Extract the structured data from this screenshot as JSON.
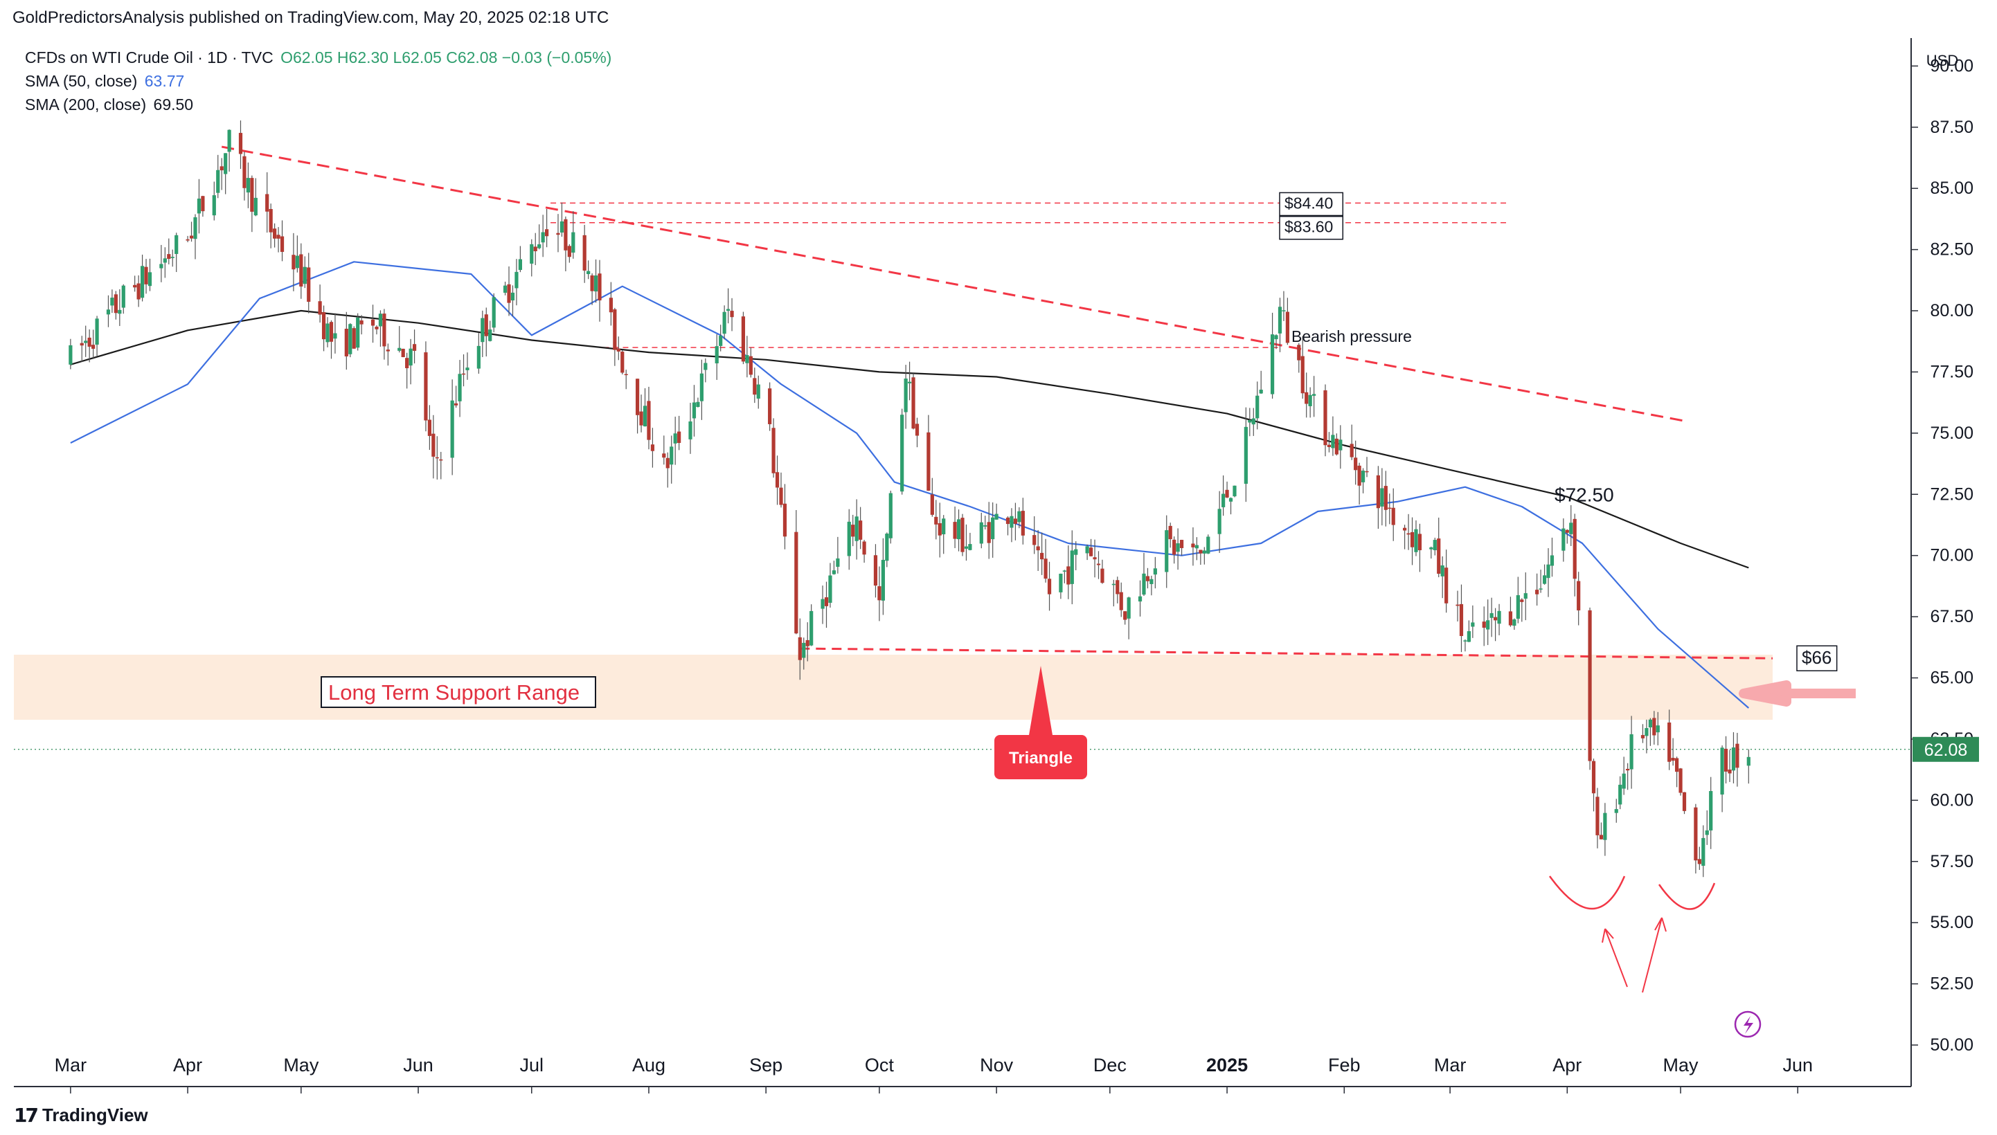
{
  "header": {
    "publish_line": "GoldPredictorsAnalysis published on TradingView.com, May 20, 2025 02:18 UTC"
  },
  "legend": {
    "symbol": "CFDs on WTI Crude Oil · 1D · TVC",
    "ohlc": "O62.05  H62.30  L62.05  C62.08  −0.03 (−0.05%)",
    "sma50_label": "SMA (50, close)",
    "sma50_value": "63.77",
    "sma200_label": "SMA (200, close)",
    "sma200_value": "69.50"
  },
  "footer": {
    "brand": "TradingView"
  },
  "colors": {
    "up": "#2e9e6e",
    "down": "#b33a32",
    "sma50": "#3d6fe0",
    "sma200": "#1a1a1a",
    "red": "#f23645",
    "support_band": "#fde8d6",
    "price_badge": "#2e8b57"
  },
  "chart_data": {
    "type": "candlestick",
    "currency": "USD",
    "ylim": [
      50,
      91
    ],
    "yticks": [
      "90.00",
      "87.50",
      "85.00",
      "82.50",
      "80.00",
      "77.50",
      "75.00",
      "72.50",
      "70.00",
      "67.50",
      "65.00",
      "62.50",
      "60.00",
      "57.50",
      "55.00",
      "52.50",
      "50.00"
    ],
    "xticks": [
      "Mar",
      "Apr",
      "May",
      "Jun",
      "Jul",
      "Aug",
      "Sep",
      "Oct",
      "Nov",
      "Dec",
      "2025",
      "Feb",
      "Mar",
      "Apr",
      "May",
      "Jun"
    ],
    "last_price": "62.08",
    "price_path": [
      [
        "2024-03-01",
        78.0
      ],
      [
        "2024-03-15",
        80.5
      ],
      [
        "2024-04-01",
        83.0
      ],
      [
        "2024-04-12",
        86.8
      ],
      [
        "2024-04-20",
        84.0
      ],
      [
        "2024-05-01",
        81.5
      ],
      [
        "2024-05-10",
        78.5
      ],
      [
        "2024-05-20",
        79.5
      ],
      [
        "2024-06-01",
        77.8
      ],
      [
        "2024-06-05",
        73.5
      ],
      [
        "2024-06-15",
        78.5
      ],
      [
        "2024-06-25",
        81.0
      ],
      [
        "2024-07-05",
        83.6
      ],
      [
        "2024-07-15",
        82.3
      ],
      [
        "2024-07-25",
        78.0
      ],
      [
        "2024-08-05",
        73.5
      ],
      [
        "2024-08-15",
        77.0
      ],
      [
        "2024-08-22",
        80.0
      ],
      [
        "2024-09-01",
        76.0
      ],
      [
        "2024-09-10",
        66.0
      ],
      [
        "2024-09-25",
        71.5
      ],
      [
        "2024-10-01",
        68.0
      ],
      [
        "2024-10-08",
        77.5
      ],
      [
        "2024-10-15",
        71.5
      ],
      [
        "2024-10-25",
        70.5
      ],
      [
        "2024-11-05",
        72.0
      ],
      [
        "2024-11-15",
        68.5
      ],
      [
        "2024-11-25",
        70.5
      ],
      [
        "2024-12-05",
        67.8
      ],
      [
        "2024-12-15",
        70.5
      ],
      [
        "2024-12-25",
        70.0
      ],
      [
        "2025-01-05",
        74.0
      ],
      [
        "2025-01-15",
        80.0
      ],
      [
        "2025-01-25",
        75.5
      ],
      [
        "2025-02-05",
        73.5
      ],
      [
        "2025-02-15",
        71.5
      ],
      [
        "2025-02-25",
        70.0
      ],
      [
        "2025-03-05",
        66.5
      ],
      [
        "2025-03-15",
        67.5
      ],
      [
        "2025-03-25",
        69.0
      ],
      [
        "2025-04-02",
        71.5
      ],
      [
        "2025-04-09",
        58.0
      ],
      [
        "2025-04-20",
        63.0
      ],
      [
        "2025-04-28",
        62.0
      ],
      [
        "2025-05-05",
        57.5
      ],
      [
        "2025-05-12",
        61.5
      ],
      [
        "2025-05-19",
        62.08
      ]
    ],
    "sma50_path": [
      [
        "2024-03-01",
        74.6
      ],
      [
        "2024-04-01",
        77.0
      ],
      [
        "2024-04-20",
        80.5
      ],
      [
        "2024-05-15",
        82.0
      ],
      [
        "2024-06-15",
        81.5
      ],
      [
        "2024-07-01",
        79.0
      ],
      [
        "2024-07-25",
        81.0
      ],
      [
        "2024-08-20",
        79.0
      ],
      [
        "2024-09-05",
        77.0
      ],
      [
        "2024-09-25",
        75.0
      ],
      [
        "2024-10-05",
        73.0
      ],
      [
        "2024-10-25",
        72.0
      ],
      [
        "2024-11-20",
        70.5
      ],
      [
        "2024-12-20",
        70.0
      ],
      [
        "2025-01-10",
        70.5
      ],
      [
        "2025-01-25",
        71.8
      ],
      [
        "2025-02-15",
        72.2
      ],
      [
        "2025-03-05",
        72.8
      ],
      [
        "2025-03-20",
        72.0
      ],
      [
        "2025-04-05",
        70.5
      ],
      [
        "2025-04-25",
        67.0
      ],
      [
        "2025-05-19",
        63.77
      ]
    ],
    "sma200_path": [
      [
        "2024-03-01",
        77.8
      ],
      [
        "2024-04-01",
        79.2
      ],
      [
        "2024-05-01",
        80.0
      ],
      [
        "2024-06-01",
        79.5
      ],
      [
        "2024-07-01",
        78.8
      ],
      [
        "2024-08-01",
        78.3
      ],
      [
        "2024-09-01",
        78.0
      ],
      [
        "2024-10-01",
        77.5
      ],
      [
        "2024-11-01",
        77.3
      ],
      [
        "2024-12-01",
        76.6
      ],
      [
        "2025-01-01",
        75.8
      ],
      [
        "2025-02-01",
        74.5
      ],
      [
        "2025-03-01",
        73.5
      ],
      [
        "2025-04-01",
        72.4
      ],
      [
        "2025-05-01",
        70.5
      ],
      [
        "2025-05-19",
        69.5
      ]
    ],
    "annotations": {
      "level_8440": "$84.40",
      "level_8360": "$83.60",
      "level_7250": "$72.50",
      "level_66": "$66",
      "bearish": "Bearish pressure",
      "support": "Long Term Support Range",
      "triangle": "Triangle"
    }
  }
}
